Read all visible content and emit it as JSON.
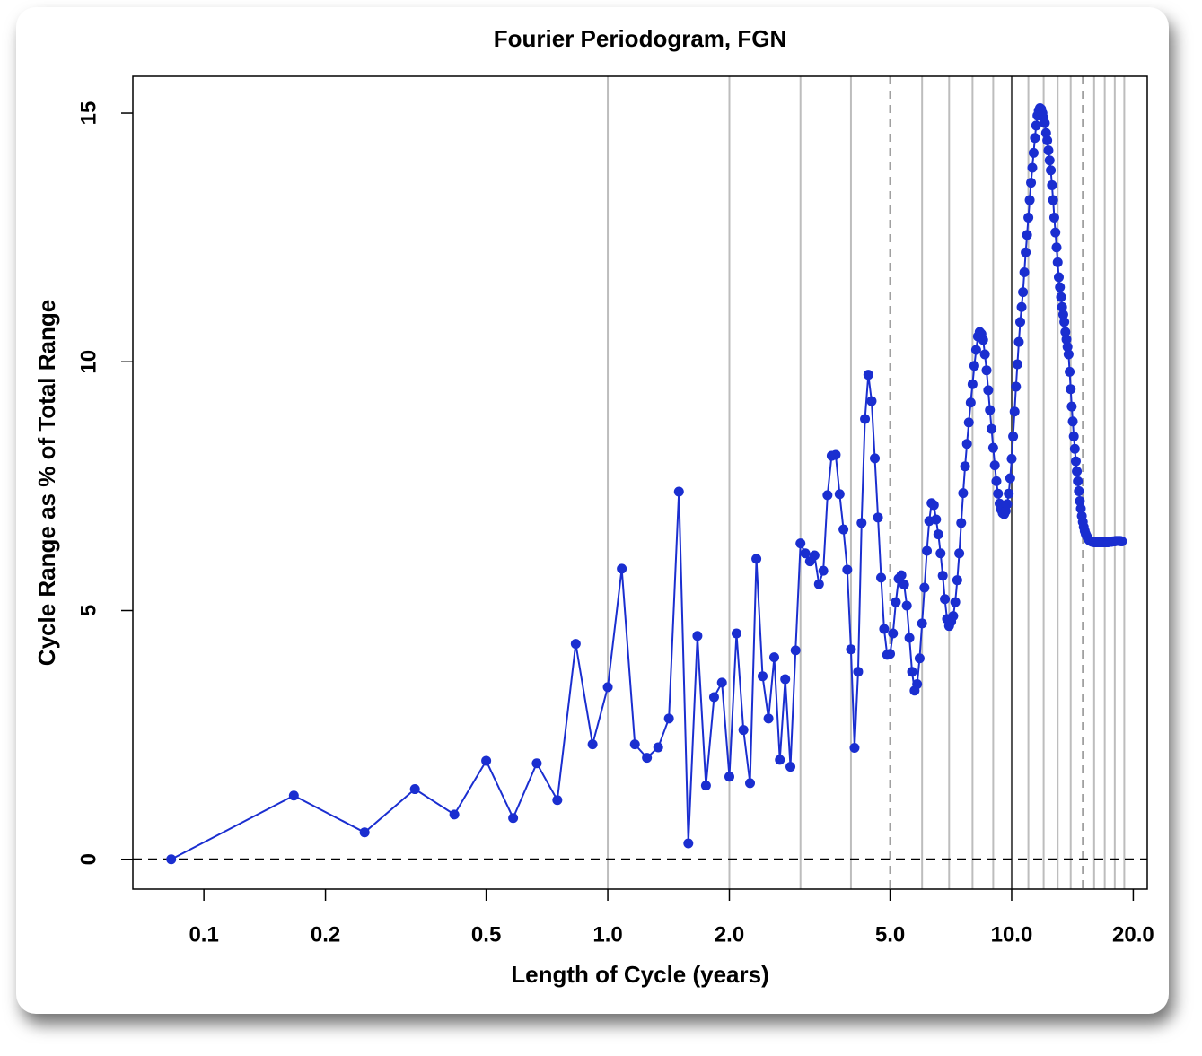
{
  "chart_data": {
    "type": "line",
    "title": "Fourier Periodogram, FGN",
    "x_label": "Length of Cycle (years)",
    "y_label": "Cycle Range as % of Total Range",
    "x_scale": "log",
    "color": "#1a2ed0",
    "xlim": [
      0.0667,
      21.66
    ],
    "ylim": [
      -0.6,
      15.74
    ],
    "xticks": [
      0.1,
      0.2,
      0.5,
      {
        "value": 1,
        "label": "1.0"
      },
      {
        "value": 2,
        "label": "2.0"
      },
      {
        "value": 5,
        "label": "5.0"
      },
      {
        "value": 10,
        "label": "10.0"
      },
      {
        "value": 20,
        "label": "20.0"
      }
    ],
    "yticks": [
      0,
      5,
      10,
      15
    ],
    "vgrid": [
      1,
      2,
      3,
      4,
      6,
      7,
      8,
      9,
      11,
      12,
      13,
      14,
      16,
      17,
      18,
      19
    ],
    "vgrid_dashed": [
      5,
      15
    ],
    "vgrid_dark": [
      10
    ],
    "hline_dashed": 0,
    "x": [
      0.083,
      0.167,
      0.25,
      0.333,
      0.417,
      0.5,
      0.583,
      0.667,
      0.75,
      0.833,
      0.917,
      1,
      1.083,
      1.167,
      1.25,
      1.333,
      1.417,
      1.5,
      1.583,
      1.667,
      1.75,
      1.833,
      1.917,
      2,
      2.083,
      2.167,
      2.25,
      2.333,
      2.417,
      2.5,
      2.583,
      2.667,
      2.75,
      2.833,
      2.917,
      3,
      3.083,
      3.167,
      3.25,
      3.333,
      3.417,
      3.5,
      3.583,
      3.667,
      3.75,
      3.833,
      3.917,
      4,
      4.083,
      4.167,
      4.25,
      4.333,
      4.417,
      4.5,
      4.583,
      4.667,
      4.75,
      4.833,
      4.917,
      5,
      5.083,
      5.167,
      5.25,
      5.333,
      5.417,
      5.5,
      5.583,
      5.667,
      5.75,
      5.833,
      5.917,
      6,
      6.083,
      6.167,
      6.25,
      6.333,
      6.417,
      6.5,
      6.583,
      6.667,
      6.75,
      6.833,
      6.917,
      7,
      7.083,
      7.167,
      7.25,
      7.333,
      7.417,
      7.5,
      7.583,
      7.667,
      7.75,
      7.833,
      7.917,
      8,
      8.083,
      8.167,
      8.25,
      8.333,
      8.417,
      8.5,
      8.583,
      8.667,
      8.75,
      8.833,
      8.917,
      9,
      9.083,
      9.167,
      9.25,
      9.333,
      9.417,
      9.5,
      9.583,
      9.667,
      9.75,
      9.833,
      9.917,
      10,
      10.083,
      10.167,
      10.25,
      10.333,
      10.417,
      10.5,
      10.583,
      10.667,
      10.75,
      10.833,
      10.917,
      11,
      11.083,
      11.167,
      11.25,
      11.333,
      11.417,
      11.5,
      11.583,
      11.667,
      11.75,
      11.833,
      11.917,
      12,
      12.083,
      12.167,
      12.25,
      12.333,
      12.417,
      12.5,
      12.583,
      12.667,
      12.75,
      12.833,
      12.917,
      13,
      13.083,
      13.167,
      13.25,
      13.333,
      13.417,
      13.5,
      13.583,
      13.667,
      13.75,
      13.833,
      13.917,
      14,
      14.083,
      14.167,
      14.25,
      14.333,
      14.417,
      14.5,
      14.583,
      14.667,
      14.75,
      14.833,
      14.917,
      15,
      15.083,
      15.167,
      15.25,
      15.333,
      15.417,
      15.5,
      15.583,
      15.667,
      15.75,
      15.833,
      15.917,
      16,
      16.083,
      16.167,
      16.25,
      16.333,
      16.417,
      16.5,
      16.583,
      16.667,
      16.75,
      16.833,
      16.917,
      17,
      17.083,
      17.167,
      17.25,
      17.333,
      17.417,
      17.5,
      17.583,
      17.667,
      17.75,
      17.833,
      17.917,
      18,
      18.083,
      18.167,
      18.25,
      18.333,
      18.417,
      18.5,
      18.583,
      18.667,
      18.75
    ],
    "values": [
      0,
      1.28,
      0.54,
      1.41,
      0.9,
      1.98,
      0.83,
      1.93,
      1.19,
      4.33,
      2.31,
      3.46,
      5.84,
      2.31,
      2.04,
      2.25,
      2.83,
      7.39,
      0.32,
      4.49,
      1.48,
      3.26,
      3.55,
      1.66,
      4.54,
      2.6,
      1.53,
      6.04,
      3.68,
      2.83,
      4.06,
      2.0,
      3.62,
      1.86,
      4.2,
      6.35,
      6.15,
      5.99,
      6.11,
      5.53,
      5.8,
      7.32,
      8.11,
      8.13,
      7.34,
      6.63,
      5.82,
      4.22,
      2.24,
      3.77,
      6.76,
      8.85,
      9.74,
      9.21,
      8.06,
      6.87,
      5.66,
      4.63,
      4.11,
      4.13,
      4.54,
      5.17,
      5.64,
      5.71,
      5.52,
      5.1,
      4.45,
      3.77,
      3.39,
      3.52,
      4.04,
      4.74,
      5.46,
      6.2,
      6.8,
      7.16,
      7.12,
      6.83,
      6.53,
      6.15,
      5.7,
      5.23,
      4.83,
      4.69,
      4.78,
      4.89,
      5.17,
      5.61,
      6.15,
      6.76,
      7.36,
      7.9,
      8.35,
      8.78,
      9.18,
      9.55,
      9.92,
      10.24,
      10.51,
      10.6,
      10.56,
      10.44,
      10.15,
      9.83,
      9.43,
      9.03,
      8.65,
      8.27,
      7.92,
      7.6,
      7.35,
      7.15,
      7.03,
      6.96,
      6.94,
      7.0,
      7.14,
      7.35,
      7.66,
      8.05,
      8.5,
      9.0,
      9.5,
      9.95,
      10.4,
      10.8,
      11.1,
      11.4,
      11.8,
      12.2,
      12.55,
      12.9,
      13.25,
      13.6,
      13.9,
      14.2,
      14.5,
      14.75,
      14.95,
      15.05,
      15.1,
      15.08,
      15.0,
      14.9,
      14.8,
      14.6,
      14.45,
      14.25,
      14.05,
      13.85,
      13.55,
      13.25,
      12.9,
      12.6,
      12.3,
      12.0,
      11.7,
      11.5,
      11.3,
      11.1,
      10.95,
      10.8,
      10.6,
      10.45,
      10.3,
      10.15,
      9.8,
      9.45,
      9.1,
      8.8,
      8.5,
      8.25,
      8.0,
      7.8,
      7.6,
      7.4,
      7.2,
      7.05,
      6.9,
      6.78,
      6.68,
      6.6,
      6.54,
      6.5,
      6.46,
      6.43,
      6.41,
      6.4,
      6.39,
      6.38,
      6.38,
      6.37,
      6.37,
      6.37,
      6.37,
      6.37,
      6.37,
      6.37,
      6.37,
      6.37,
      6.37,
      6.37,
      6.37,
      6.37,
      6.37,
      6.37,
      6.37,
      6.37,
      6.38,
      6.38,
      6.38,
      6.38,
      6.39,
      6.39,
      6.39,
      6.39,
      6.4,
      6.4,
      6.4,
      6.4,
      6.4,
      6.4,
      6.4,
      6.39,
      6.39
    ]
  }
}
